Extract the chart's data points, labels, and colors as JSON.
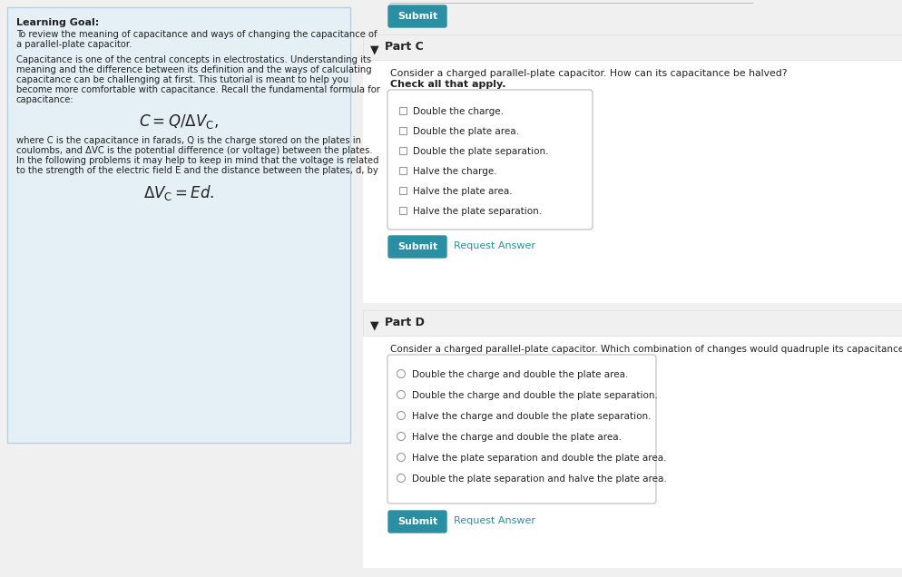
{
  "bg_color": "#f0f0f0",
  "left_panel_bg": "#e4f0f5",
  "left_panel_border": "#b8d0dc",
  "right_bg": "#ffffff",
  "white": "#ffffff",
  "teal": "#2a8fa3",
  "teal_text": "#2a8fa3",
  "text_dark": "#222222",
  "text_gray": "#555555",
  "header_bg": "#f0f0f0",
  "border_gray": "#cccccc",
  "submit_text": "#ffffff",
  "learning_goal_title": "Learning Goal:",
  "learning_goal_body1": "To review the meaning of capacitance and ways of changing the capacitance of\na parallel-plate capacitor.",
  "learning_goal_body2": "Capacitance is one of the central concepts in electrostatics. Understanding its\nmeaning and the difference between its definition and the ways of calculating\ncapacitance can be challenging at first. This tutorial is meant to help you\nbecome more comfortable with capacitance. Recall the fundamental formula for\ncapacitance:",
  "learning_goal_body3": "where C is the capacitance in farads, Q is the charge stored on the plates in\ncoulombs, and ΔVC is the potential difference (or voltage) between the plates.\nIn the following problems it may help to keep in mind that the voltage is related\nto the strength of the electric field E and the distance between the plates, d, by",
  "part_c_label": "Part C",
  "part_c_question": "Consider a charged parallel-plate capacitor. How can its capacitance be halved?",
  "part_c_subq": "Check all that apply.",
  "part_c_options": [
    "Double the charge.",
    "Double the plate area.",
    "Double the plate separation.",
    "Halve the charge.",
    "Halve the plate area.",
    "Halve the plate separation."
  ],
  "part_d_label": "Part D",
  "part_d_question": "Consider a charged parallel-plate capacitor. Which combination of changes would quadruple its capacitance?",
  "part_d_options": [
    "Double the charge and double the plate area.",
    "Double the charge and double the plate separation.",
    "Halve the charge and double the plate separation.",
    "Halve the charge and double the plate area.",
    "Halve the plate separation and double the plate area.",
    "Double the plate separation and halve the plate area."
  ],
  "submit_label": "Submit",
  "request_answer_label": "Request Answer",
  "fig_width": 9.95,
  "fig_height": 6.36,
  "dpi": 100
}
